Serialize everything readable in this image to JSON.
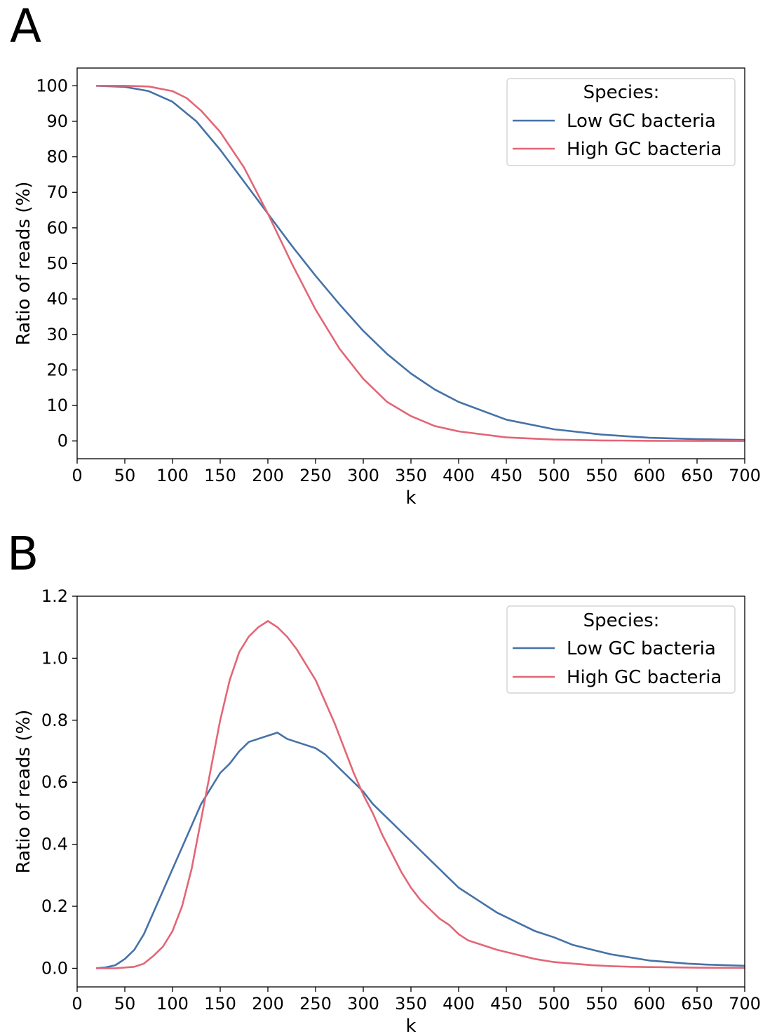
{
  "figure": {
    "panels": [
      {
        "letter": "A",
        "legend": {
          "title": "Species:",
          "entries": [
            "Low GC bacteria",
            "High GC bacteria"
          ],
          "placement": "top-right"
        }
      },
      {
        "letter": "B",
        "legend": {
          "title": "Species:",
          "entries": [
            "Low GC bacteria",
            "High GC bacteria"
          ],
          "placement": "top-right"
        }
      }
    ]
  },
  "colors": {
    "low_gc": "#4572a7",
    "high_gc": "#e36676"
  },
  "chart_data": [
    {
      "type": "line",
      "panel": "A",
      "xlabel": "k",
      "ylabel": "Ratio of reads (%)",
      "xlim": [
        0,
        700
      ],
      "ylim": [
        -5,
        105
      ],
      "xticks": [
        0,
        50,
        100,
        150,
        200,
        250,
        300,
        350,
        400,
        450,
        500,
        550,
        600,
        650,
        700
      ],
      "yticks": [
        0,
        10,
        20,
        30,
        40,
        50,
        60,
        70,
        80,
        90,
        100
      ],
      "grid": false,
      "legend_title": "Species:",
      "series": [
        {
          "name": "Low GC bacteria",
          "x": [
            20,
            50,
            75,
            100,
            125,
            150,
            175,
            200,
            225,
            250,
            275,
            300,
            325,
            350,
            375,
            400,
            450,
            500,
            550,
            600,
            650,
            700
          ],
          "y": [
            100,
            99.7,
            98.5,
            95.5,
            90,
            82,
            73,
            64,
            55,
            46.5,
            38.5,
            31,
            24.5,
            19,
            14.5,
            11,
            6,
            3.3,
            1.8,
            0.9,
            0.5,
            0.3
          ]
        },
        {
          "name": "High GC bacteria",
          "x": [
            20,
            50,
            75,
            100,
            115,
            130,
            150,
            175,
            200,
            225,
            250,
            275,
            300,
            325,
            350,
            375,
            400,
            450,
            500,
            550,
            600,
            650,
            700
          ],
          "y": [
            100,
            100,
            99.8,
            98.5,
            96.5,
            93,
            87,
            77,
            64,
            50,
            37,
            26,
            17.5,
            11,
            7,
            4.2,
            2.7,
            1,
            0.4,
            0.15,
            0.05,
            0.02,
            0
          ]
        }
      ]
    },
    {
      "type": "line",
      "panel": "B",
      "xlabel": "k",
      "ylabel": "Ratio of reads (%)",
      "xlim": [
        0,
        700
      ],
      "ylim": [
        -0.06,
        1.2
      ],
      "xticks": [
        0,
        50,
        100,
        150,
        200,
        250,
        300,
        350,
        400,
        450,
        500,
        550,
        600,
        650,
        700
      ],
      "yticks": [
        0.0,
        0.2,
        0.4,
        0.6,
        0.8,
        1.0,
        1.2
      ],
      "grid": false,
      "legend_title": "Species:",
      "series": [
        {
          "name": "Low GC bacteria",
          "x": [
            20,
            30,
            40,
            50,
            60,
            70,
            80,
            90,
            100,
            110,
            120,
            130,
            140,
            150,
            160,
            170,
            180,
            190,
            200,
            210,
            220,
            230,
            240,
            250,
            260,
            270,
            280,
            290,
            300,
            310,
            320,
            330,
            340,
            350,
            360,
            370,
            380,
            390,
            400,
            420,
            440,
            460,
            480,
            500,
            520,
            540,
            560,
            580,
            600,
            620,
            640,
            660,
            680,
            700
          ],
          "y": [
            0,
            0.003,
            0.01,
            0.03,
            0.06,
            0.11,
            0.18,
            0.25,
            0.32,
            0.39,
            0.46,
            0.53,
            0.58,
            0.63,
            0.66,
            0.7,
            0.73,
            0.74,
            0.75,
            0.76,
            0.74,
            0.73,
            0.72,
            0.71,
            0.69,
            0.66,
            0.63,
            0.6,
            0.57,
            0.53,
            0.5,
            0.47,
            0.44,
            0.41,
            0.38,
            0.35,
            0.32,
            0.29,
            0.26,
            0.22,
            0.18,
            0.15,
            0.12,
            0.1,
            0.075,
            0.06,
            0.045,
            0.035,
            0.025,
            0.02,
            0.015,
            0.012,
            0.01,
            0.008
          ]
        },
        {
          "name": "High GC bacteria",
          "x": [
            20,
            40,
            60,
            70,
            80,
            90,
            100,
            110,
            120,
            130,
            140,
            150,
            160,
            170,
            180,
            190,
            200,
            210,
            220,
            230,
            240,
            250,
            260,
            270,
            280,
            290,
            300,
            310,
            320,
            330,
            340,
            350,
            360,
            370,
            380,
            390,
            400,
            410,
            420,
            440,
            460,
            480,
            500,
            520,
            540,
            560,
            580,
            600,
            650,
            700
          ],
          "y": [
            0,
            0,
            0.005,
            0.015,
            0.04,
            0.07,
            0.12,
            0.2,
            0.32,
            0.48,
            0.64,
            0.8,
            0.93,
            1.02,
            1.07,
            1.1,
            1.12,
            1.1,
            1.07,
            1.03,
            0.98,
            0.93,
            0.86,
            0.79,
            0.71,
            0.63,
            0.56,
            0.5,
            0.43,
            0.37,
            0.31,
            0.26,
            0.22,
            0.19,
            0.16,
            0.14,
            0.11,
            0.09,
            0.08,
            0.06,
            0.045,
            0.03,
            0.02,
            0.015,
            0.01,
            0.007,
            0.005,
            0.004,
            0.002,
            0.001
          ]
        }
      ]
    }
  ]
}
